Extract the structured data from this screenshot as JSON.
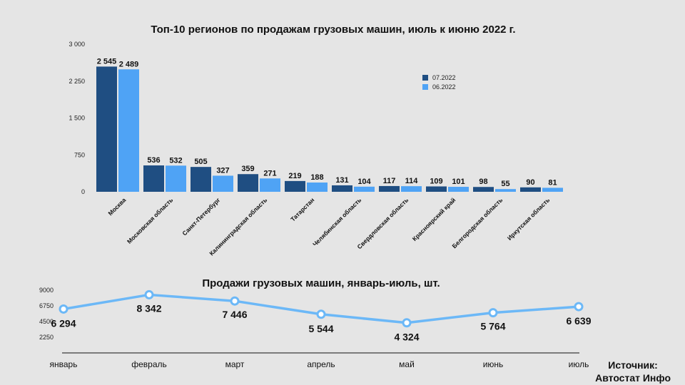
{
  "colors": {
    "series1": "#1f4e82",
    "series2": "#4fa3f5",
    "line": "#6cb8f7",
    "axis": "#111111"
  },
  "source": {
    "line1": "Источник:",
    "line2": "Автостат Инфо"
  },
  "chart_data": [
    {
      "type": "bar",
      "title": "Топ-10 регионов по продажам грузовых машин, июль к июню 2022 г.",
      "xlabel": "",
      "ylabel": "",
      "ylim": [
        0,
        3000
      ],
      "yticks": [
        0,
        750,
        1500,
        2250,
        3000
      ],
      "ytick_labels": [
        "0",
        "750",
        "1 500",
        "2 250",
        "3 000"
      ],
      "grid": false,
      "legend": "top-right",
      "categories": [
        "Москва",
        "Московская область",
        "Санкт-Петербург",
        "Калининградская область",
        "Татарстан",
        "Челябинская область",
        "Свердловская область",
        "Красноярский край",
        "Белгородская область",
        "Иркутская область"
      ],
      "series": [
        {
          "name": "07.2022",
          "values": [
            2545,
            536,
            505,
            359,
            219,
            131,
            117,
            109,
            98,
            90
          ],
          "labels": [
            "2 545",
            "536",
            "505",
            "359",
            "219",
            "131",
            "117",
            "109",
            "98",
            "90"
          ]
        },
        {
          "name": "06.2022",
          "values": [
            2489,
            532,
            327,
            271,
            188,
            104,
            114,
            101,
            55,
            81
          ],
          "labels": [
            "2 489",
            "532",
            "327",
            "271",
            "188",
            "104",
            "114",
            "101",
            "55",
            "81"
          ]
        }
      ]
    },
    {
      "type": "line",
      "title": "Продажи грузовых машин, январь-июль, шт.",
      "xlabel": "",
      "ylabel": "",
      "ylim": [
        0,
        9000
      ],
      "yticks": [
        2250,
        4500,
        6750,
        9000
      ],
      "ytick_labels": [
        "2250",
        "4500",
        "6750",
        "9000"
      ],
      "grid": false,
      "categories": [
        "январь",
        "февраль",
        "март",
        "апрель",
        "май",
        "июнь",
        "июль"
      ],
      "series": [
        {
          "values": [
            6294,
            8342,
            7446,
            5544,
            4324,
            5764,
            6639
          ],
          "labels": [
            "6 294",
            "8 342",
            "7 446",
            "5 544",
            "4 324",
            "5 764",
            "6 639"
          ]
        }
      ]
    }
  ]
}
